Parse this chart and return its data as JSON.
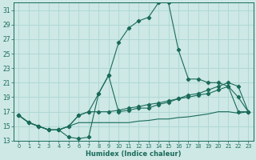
{
  "xlabel": "Humidex (Indice chaleur)",
  "bg_color": "#cde8e5",
  "grid_color": "#b0d8d4",
  "line_color": "#1a6b5a",
  "xlim": [
    -0.5,
    23.5
  ],
  "ylim": [
    13,
    32
  ],
  "xticks": [
    0,
    1,
    2,
    3,
    4,
    5,
    6,
    7,
    8,
    9,
    10,
    11,
    12,
    13,
    14,
    15,
    16,
    17,
    18,
    19,
    20,
    21,
    22,
    23
  ],
  "yticks": [
    13,
    15,
    17,
    19,
    21,
    23,
    25,
    27,
    29,
    31
  ],
  "curve1_x": [
    0,
    1,
    2,
    3,
    4,
    5,
    6,
    7,
    8,
    9,
    10,
    11,
    12,
    13,
    14,
    15,
    16,
    17,
    18,
    19,
    20,
    21,
    22,
    23
  ],
  "curve1_y": [
    16.5,
    15.5,
    15.0,
    14.5,
    14.5,
    13.5,
    13.3,
    13.5,
    19.5,
    22.0,
    26.5,
    28.5,
    29.5,
    30.0,
    32.0,
    32.0,
    25.5,
    21.5,
    21.5,
    21.0,
    21.0,
    20.5,
    19.0,
    17.0
  ],
  "curve2_x": [
    0,
    1,
    2,
    3,
    4,
    5,
    6,
    7,
    8,
    9,
    10,
    11,
    12,
    13,
    14,
    15,
    16,
    17,
    18,
    19,
    20,
    21,
    22,
    23
  ],
  "curve2_y": [
    16.5,
    15.5,
    15.0,
    14.5,
    14.5,
    15.0,
    16.5,
    17.0,
    19.5,
    22.0,
    17.0,
    17.2,
    17.5,
    17.5,
    18.0,
    18.3,
    18.8,
    19.3,
    19.5,
    20.0,
    20.5,
    21.0,
    20.5,
    17.0
  ],
  "curve3_x": [
    0,
    1,
    2,
    3,
    4,
    5,
    6,
    7,
    8,
    9,
    10,
    11,
    12,
    13,
    14,
    15,
    16,
    17,
    18,
    19,
    20,
    21,
    22,
    23
  ],
  "curve3_y": [
    16.5,
    15.5,
    15.0,
    14.5,
    14.5,
    15.0,
    16.5,
    17.0,
    17.0,
    17.0,
    17.2,
    17.5,
    17.7,
    18.0,
    18.2,
    18.5,
    18.8,
    19.0,
    19.3,
    19.5,
    20.0,
    20.5,
    17.0,
    17.0
  ],
  "curve4_x": [
    0,
    1,
    2,
    3,
    4,
    5,
    6,
    7,
    8,
    9,
    10,
    11,
    12,
    13,
    14,
    15,
    16,
    17,
    18,
    19,
    20,
    21,
    22,
    23
  ],
  "curve4_y": [
    16.5,
    15.5,
    15.0,
    14.5,
    14.5,
    15.0,
    15.5,
    15.5,
    15.5,
    15.5,
    15.5,
    15.5,
    15.7,
    15.8,
    16.0,
    16.0,
    16.2,
    16.3,
    16.5,
    16.7,
    17.0,
    17.0,
    16.8,
    17.0
  ]
}
